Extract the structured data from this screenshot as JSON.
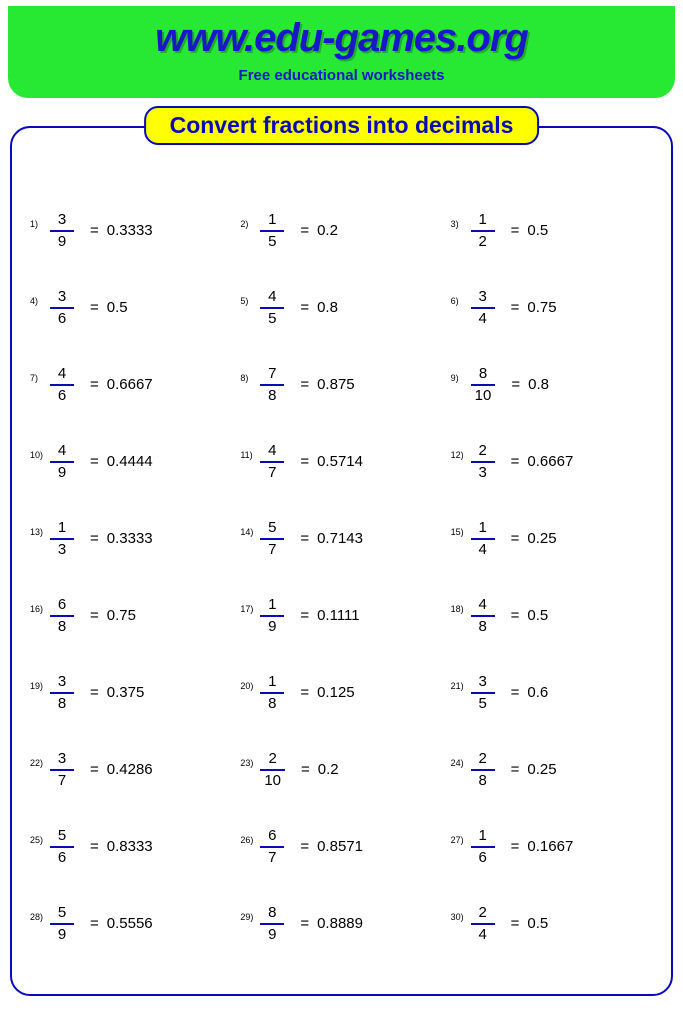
{
  "colors": {
    "header_bg": "#27e833",
    "header_title": "#1818c9",
    "header_subtitle": "#1818c9",
    "pill_bg": "#ffff00",
    "pill_border": "#0b0bb5",
    "pill_text": "#0b0bb5",
    "box_border": "#0b0bb5",
    "frac_bar": "#0b0bb5",
    "text": "#000000"
  },
  "header": {
    "title": "www.edu-games.org",
    "subtitle": "Free educational worksheets"
  },
  "worksheet": {
    "title": "Convert fractions into decimals",
    "problems": [
      {
        "n": "1",
        "num": "3",
        "den": "9",
        "ans": "0.3333"
      },
      {
        "n": "2",
        "num": "1",
        "den": "5",
        "ans": "0.2"
      },
      {
        "n": "3",
        "num": "1",
        "den": "2",
        "ans": "0.5"
      },
      {
        "n": "4",
        "num": "3",
        "den": "6",
        "ans": "0.5"
      },
      {
        "n": "5",
        "num": "4",
        "den": "5",
        "ans": "0.8"
      },
      {
        "n": "6",
        "num": "3",
        "den": "4",
        "ans": "0.75"
      },
      {
        "n": "7",
        "num": "4",
        "den": "6",
        "ans": "0.6667"
      },
      {
        "n": "8",
        "num": "7",
        "den": "8",
        "ans": "0.875"
      },
      {
        "n": "9",
        "num": "8",
        "den": "10",
        "ans": "0.8"
      },
      {
        "n": "10",
        "num": "4",
        "den": "9",
        "ans": "0.4444"
      },
      {
        "n": "11",
        "num": "4",
        "den": "7",
        "ans": "0.5714"
      },
      {
        "n": "12",
        "num": "2",
        "den": "3",
        "ans": "0.6667"
      },
      {
        "n": "13",
        "num": "1",
        "den": "3",
        "ans": "0.3333"
      },
      {
        "n": "14",
        "num": "5",
        "den": "7",
        "ans": "0.7143"
      },
      {
        "n": "15",
        "num": "1",
        "den": "4",
        "ans": "0.25"
      },
      {
        "n": "16",
        "num": "6",
        "den": "8",
        "ans": "0.75"
      },
      {
        "n": "17",
        "num": "1",
        "den": "9",
        "ans": "0.1111"
      },
      {
        "n": "18",
        "num": "4",
        "den": "8",
        "ans": "0.5"
      },
      {
        "n": "19",
        "num": "3",
        "den": "8",
        "ans": "0.375"
      },
      {
        "n": "20",
        "num": "1",
        "den": "8",
        "ans": "0.125"
      },
      {
        "n": "21",
        "num": "3",
        "den": "5",
        "ans": "0.6"
      },
      {
        "n": "22",
        "num": "3",
        "den": "7",
        "ans": "0.4286"
      },
      {
        "n": "23",
        "num": "2",
        "den": "10",
        "ans": "0.2"
      },
      {
        "n": "24",
        "num": "2",
        "den": "8",
        "ans": "0.25"
      },
      {
        "n": "25",
        "num": "5",
        "den": "6",
        "ans": "0.8333"
      },
      {
        "n": "26",
        "num": "6",
        "den": "7",
        "ans": "0.8571"
      },
      {
        "n": "27",
        "num": "1",
        "den": "6",
        "ans": "0.1667"
      },
      {
        "n": "28",
        "num": "5",
        "den": "9",
        "ans": "0.5556"
      },
      {
        "n": "29",
        "num": "8",
        "den": "9",
        "ans": "0.8889"
      },
      {
        "n": "30",
        "num": "2",
        "den": "4",
        "ans": "0.5"
      }
    ]
  }
}
